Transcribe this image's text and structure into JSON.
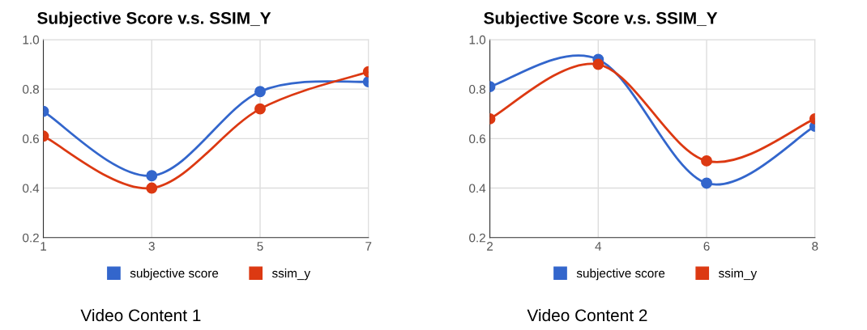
{
  "chart_data": [
    {
      "type": "line",
      "title": "Subjective Score v.s. SSIM_Y",
      "x": [
        1,
        3,
        5,
        7
      ],
      "xlim": [
        1,
        7
      ],
      "xticks": [
        1,
        3,
        5,
        7
      ],
      "ylim": [
        0.2,
        1.0
      ],
      "yticks": [
        {
          "value": 0.2,
          "label": "0.2"
        },
        {
          "value": 0.4,
          "label": "0.4"
        },
        {
          "value": 0.6,
          "label": "0.6"
        },
        {
          "value": 0.8,
          "label": "0.8"
        },
        {
          "value": 1.0,
          "label": "1.0"
        }
      ],
      "grid": true,
      "legend": "bottom",
      "marker": "circle",
      "line_style": "solid",
      "annotations": [
        "Video Content 1"
      ],
      "series": [
        {
          "name": "subjective score",
          "color": "#3366cc",
          "values": [
            0.71,
            0.45,
            0.79,
            0.83
          ]
        },
        {
          "name": "ssim_y",
          "color": "#dc3912",
          "values": [
            0.61,
            0.4,
            0.72,
            0.87
          ]
        }
      ]
    },
    {
      "type": "line",
      "title": "Subjective Score v.s. SSIM_Y",
      "x": [
        2,
        4,
        6,
        8
      ],
      "xlim": [
        2,
        8
      ],
      "xticks": [
        2,
        4,
        6,
        8
      ],
      "ylim": [
        0.2,
        1.0
      ],
      "yticks": [
        {
          "value": 0.2,
          "label": "0.2"
        },
        {
          "value": 0.4,
          "label": "0.4"
        },
        {
          "value": 0.6,
          "label": "0.6"
        },
        {
          "value": 0.8,
          "label": "0.8"
        },
        {
          "value": 1.0,
          "label": "1.0"
        }
      ],
      "grid": true,
      "legend": "bottom",
      "marker": "circle",
      "line_style": "solid",
      "annotations": [
        "Video Content 2"
      ],
      "series": [
        {
          "name": "subjective score",
          "color": "#3366cc",
          "values": [
            0.81,
            0.92,
            0.42,
            0.65
          ]
        },
        {
          "name": "ssim_y",
          "color": "#dc3912",
          "values": [
            0.68,
            0.9,
            0.51,
            0.68
          ]
        }
      ]
    }
  ]
}
